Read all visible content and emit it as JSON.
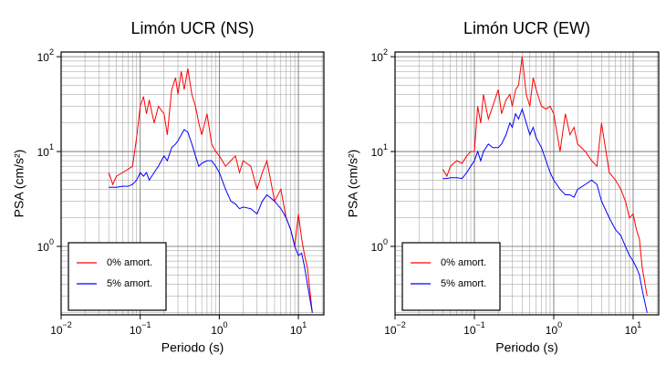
{
  "chart_data": [
    {
      "type": "line",
      "title": "Limón UCR (NS)",
      "x_label": "Periodo (s)",
      "y_label": "PSA (cm/s²)",
      "log_x": true,
      "log_y": true,
      "grid": true,
      "minor_grid": true,
      "legend": "lower left",
      "xlim": [
        0.01,
        21
      ],
      "ylim": [
        0.19,
        112
      ],
      "xticks": [
        {
          "value": 0.01,
          "label": "10",
          "exp": "−2"
        },
        {
          "value": 0.1,
          "label": "10",
          "exp": "−1"
        },
        {
          "value": 1,
          "label": "10",
          "exp": "0"
        },
        {
          "value": 10,
          "label": "10",
          "exp": "1"
        }
      ],
      "yticks": [
        {
          "value": 1,
          "label": "10",
          "exp": "0"
        },
        {
          "value": 10,
          "label": "10",
          "exp": "1"
        },
        {
          "value": 100,
          "label": "10",
          "exp": "2"
        }
      ],
      "x": [
        0.04,
        0.045,
        0.05,
        0.06,
        0.07,
        0.08,
        0.09,
        0.1,
        0.11,
        0.12,
        0.13,
        0.15,
        0.17,
        0.2,
        0.22,
        0.25,
        0.28,
        0.3,
        0.33,
        0.36,
        0.4,
        0.45,
        0.5,
        0.55,
        0.6,
        0.7,
        0.8,
        0.9,
        1.0,
        1.2,
        1.4,
        1.6,
        1.8,
        2.0,
        2.5,
        3,
        3.5,
        4,
        5,
        6,
        7,
        8,
        9,
        10,
        11,
        12,
        13,
        15
      ],
      "series": [
        {
          "name": "0% amort.",
          "color": "#ff0000",
          "values": [
            6,
            4.5,
            5.5,
            6,
            6.5,
            7,
            14,
            30,
            38,
            25,
            35,
            20,
            30,
            25,
            15,
            45,
            60,
            40,
            70,
            45,
            75,
            40,
            30,
            20,
            15,
            25,
            12,
            10,
            9,
            7,
            8,
            9,
            6,
            8,
            7,
            4,
            6,
            8,
            3,
            4,
            2,
            1.5,
            1,
            2.2,
            1.2,
            0.8,
            0.6,
            0.2
          ]
        },
        {
          "name": "5% amort.",
          "color": "#0000ff",
          "values": [
            4.2,
            4.2,
            4.2,
            4.3,
            4.3,
            4.5,
            5,
            6,
            5.5,
            6,
            5,
            6,
            7,
            9,
            8,
            11,
            12,
            13,
            15,
            17,
            16,
            12,
            9,
            7,
            7.5,
            8,
            8,
            7,
            6,
            4,
            3,
            2.8,
            2.5,
            2.6,
            2.5,
            2.2,
            3,
            3.5,
            3,
            2.5,
            2,
            1.5,
            1,
            0.8,
            0.85,
            0.6,
            0.4,
            0.2
          ]
        }
      ]
    },
    {
      "type": "line",
      "title": "Limón UCR (EW)",
      "x_label": "Periodo (s)",
      "y_label": "PSA (cm/s²)",
      "log_x": true,
      "log_y": true,
      "grid": true,
      "minor_grid": true,
      "legend": "lower left",
      "xlim": [
        0.01,
        21
      ],
      "ylim": [
        0.19,
        112
      ],
      "xticks": [
        {
          "value": 0.01,
          "label": "10",
          "exp": "−2"
        },
        {
          "value": 0.1,
          "label": "10",
          "exp": "−1"
        },
        {
          "value": 1,
          "label": "10",
          "exp": "0"
        },
        {
          "value": 10,
          "label": "10",
          "exp": "1"
        }
      ],
      "yticks": [
        {
          "value": 1,
          "label": "10",
          "exp": "0"
        },
        {
          "value": 10,
          "label": "10",
          "exp": "1"
        },
        {
          "value": 100,
          "label": "10",
          "exp": "2"
        }
      ],
      "x": [
        0.04,
        0.045,
        0.05,
        0.06,
        0.07,
        0.08,
        0.09,
        0.1,
        0.11,
        0.12,
        0.13,
        0.15,
        0.17,
        0.2,
        0.22,
        0.25,
        0.28,
        0.3,
        0.33,
        0.36,
        0.4,
        0.45,
        0.5,
        0.55,
        0.6,
        0.7,
        0.8,
        0.9,
        1.0,
        1.2,
        1.4,
        1.6,
        1.8,
        2.0,
        2.5,
        3,
        3.5,
        4,
        5,
        6,
        7,
        8,
        9,
        10,
        11,
        12,
        13,
        15
      ],
      "series": [
        {
          "name": "0% amort.",
          "color": "#ff0000",
          "values": [
            6.5,
            5.5,
            7,
            8,
            7.5,
            9,
            10,
            10,
            30,
            20,
            40,
            22,
            30,
            45,
            25,
            35,
            40,
            30,
            45,
            50,
            100,
            40,
            30,
            60,
            45,
            30,
            28,
            30,
            25,
            10,
            25,
            15,
            18,
            12,
            10,
            8,
            7,
            20,
            6,
            5,
            4,
            3,
            2,
            2.2,
            1.5,
            1.2,
            0.6,
            0.3
          ]
        },
        {
          "name": "5% amort.",
          "color": "#0000ff",
          "values": [
            5.2,
            5.2,
            5.3,
            5.3,
            5.2,
            6,
            7,
            8,
            10,
            8,
            10,
            12,
            11,
            11,
            12,
            15,
            20,
            18,
            25,
            22,
            28,
            20,
            15,
            18,
            14,
            11,
            8,
            6,
            5,
            4,
            3.5,
            3.5,
            3.3,
            4,
            4.5,
            5,
            4.5,
            3,
            2,
            1.5,
            1.3,
            1,
            0.8,
            0.7,
            0.6,
            0.5,
            0.35,
            0.2
          ]
        }
      ]
    }
  ]
}
